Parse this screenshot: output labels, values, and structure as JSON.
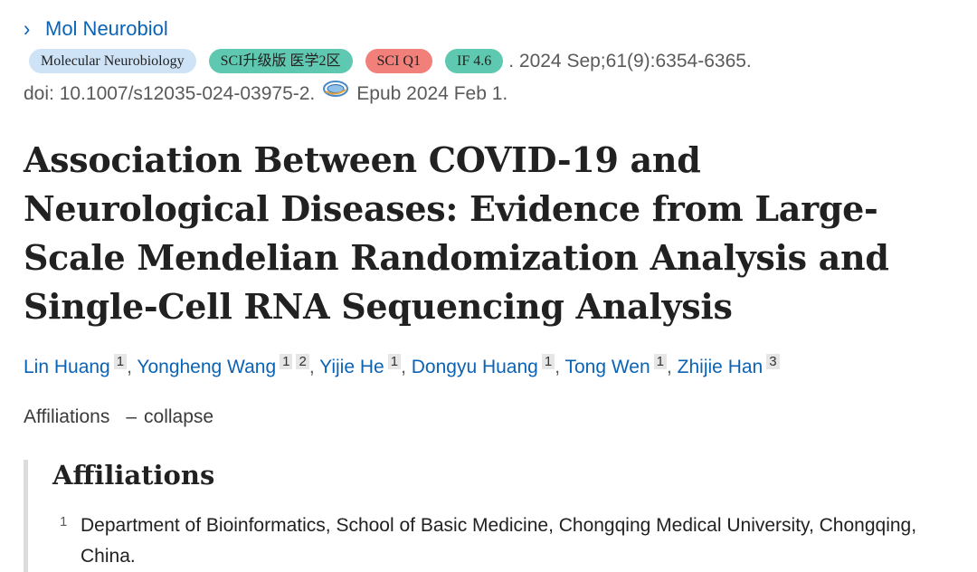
{
  "journal": {
    "chevron": "›",
    "name": "Mol Neurobiol"
  },
  "badges": {
    "journal": "Molecular Neurobiology",
    "sci": "SCI升级版 医学2区",
    "q1": "SCI Q1",
    "if": "IF 4.6"
  },
  "citation": ". 2024 Sep;61(9):6354-6365.",
  "doi": {
    "text": "doi: 10.1007/s12035-024-03975-2.",
    "icon": "fulltext-link-icon",
    "epub": "Epub 2024 Feb 1."
  },
  "title": "Association Between COVID-19 and Neurological Diseases: Evidence from Large-Scale Mendelian Randomization Analysis and Single-Cell RNA Sequencing Analysis",
  "authors": [
    {
      "name": "Lin Huang",
      "affs": [
        "1"
      ]
    },
    {
      "name": "Yongheng Wang",
      "affs": [
        "1",
        "2"
      ]
    },
    {
      "name": "Yijie He",
      "affs": [
        "1"
      ]
    },
    {
      "name": "Dongyu Huang",
      "affs": [
        "1"
      ]
    },
    {
      "name": "Tong Wen",
      "affs": [
        "1"
      ]
    },
    {
      "name": "Zhijie Han",
      "affs": [
        "3"
      ]
    }
  ],
  "affiliations_toggle": {
    "label": "Affiliations",
    "dash": "–",
    "action": "collapse"
  },
  "affiliations": {
    "heading": "Affiliations",
    "items": [
      {
        "num": "1",
        "text": "Department of Bioinformatics, School of Basic Medicine, Chongqing Medical University, Chongqing, China."
      }
    ]
  },
  "colors": {
    "link": "#0b63b6",
    "badge_teal": "#5ec9b0",
    "badge_red": "#f1807b",
    "badge_blue": "#cfe3f7"
  }
}
